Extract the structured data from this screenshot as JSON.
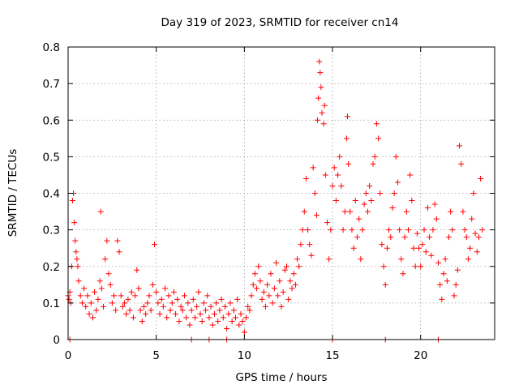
{
  "chart_data": {
    "type": "scatter",
    "title": "Day 319 of 2023, SRMTID for receiver cn14",
    "xlabel": "GPS time / hours",
    "ylabel": "SRMTID / TECUs",
    "xlim": [
      0,
      24.2
    ],
    "ylim": [
      0,
      0.8
    ],
    "xticks": [
      0,
      5,
      10,
      15,
      20
    ],
    "xtick_labels": [
      "0",
      "5",
      "10",
      "15",
      "20"
    ],
    "yticks": [
      0,
      0.1,
      0.2,
      0.3,
      0.4,
      0.5,
      0.6,
      0.7,
      0.8
    ],
    "ytick_labels": [
      "0",
      "0.1",
      "0.2",
      "0.3",
      "0.4",
      "0.5",
      "0.6",
      "0.7",
      "0.8"
    ],
    "grid": true,
    "marker": "+",
    "series": [
      {
        "name": "SRMTID",
        "color": "#ff0000",
        "points": [
          [
            0.0,
            0.12
          ],
          [
            0.05,
            0.11
          ],
          [
            0.1,
            0.13
          ],
          [
            0.15,
            0.1
          ],
          [
            0.2,
            0.2
          ],
          [
            0.25,
            0.38
          ],
          [
            0.3,
            0.4
          ],
          [
            0.35,
            0.32
          ],
          [
            0.4,
            0.27
          ],
          [
            0.45,
            0.24
          ],
          [
            0.5,
            0.22
          ],
          [
            0.55,
            0.2
          ],
          [
            0.6,
            0.16
          ],
          [
            0.7,
            0.12
          ],
          [
            0.8,
            0.1
          ],
          [
            0.9,
            0.14
          ],
          [
            1.0,
            0.09
          ],
          [
            1.1,
            0.12
          ],
          [
            1.2,
            0.07
          ],
          [
            1.3,
            0.1
          ],
          [
            1.4,
            0.06
          ],
          [
            1.5,
            0.13
          ],
          [
            1.6,
            0.08
          ],
          [
            1.7,
            0.11
          ],
          [
            1.8,
            0.16
          ],
          [
            1.85,
            0.35
          ],
          [
            1.9,
            0.14
          ],
          [
            2.0,
            0.09
          ],
          [
            2.1,
            0.22
          ],
          [
            2.2,
            0.27
          ],
          [
            2.3,
            0.18
          ],
          [
            2.4,
            0.15
          ],
          [
            2.5,
            0.1
          ],
          [
            2.6,
            0.12
          ],
          [
            2.7,
            0.08
          ],
          [
            2.8,
            0.27
          ],
          [
            2.9,
            0.24
          ],
          [
            3.0,
            0.12
          ],
          [
            3.1,
            0.09
          ],
          [
            3.2,
            0.1
          ],
          [
            3.3,
            0.07
          ],
          [
            3.4,
            0.11
          ],
          [
            3.5,
            0.08
          ],
          [
            3.6,
            0.13
          ],
          [
            3.7,
            0.06
          ],
          [
            3.8,
            0.12
          ],
          [
            3.9,
            0.19
          ],
          [
            4.0,
            0.14
          ],
          [
            4.1,
            0.08
          ],
          [
            4.2,
            0.05
          ],
          [
            4.3,
            0.09
          ],
          [
            4.4,
            0.07
          ],
          [
            4.5,
            0.1
          ],
          [
            4.6,
            0.12
          ],
          [
            4.7,
            0.08
          ],
          [
            4.8,
            0.15
          ],
          [
            4.9,
            0.26
          ],
          [
            5.0,
            0.13
          ],
          [
            5.1,
            0.1
          ],
          [
            5.2,
            0.07
          ],
          [
            5.3,
            0.11
          ],
          [
            5.4,
            0.09
          ],
          [
            5.5,
            0.14
          ],
          [
            5.6,
            0.06
          ],
          [
            5.7,
            0.12
          ],
          [
            5.8,
            0.08
          ],
          [
            5.9,
            0.1
          ],
          [
            6.0,
            0.13
          ],
          [
            6.1,
            0.07
          ],
          [
            6.2,
            0.11
          ],
          [
            6.3,
            0.05
          ],
          [
            6.4,
            0.09
          ],
          [
            6.5,
            0.08
          ],
          [
            6.6,
            0.12
          ],
          [
            6.7,
            0.06
          ],
          [
            6.8,
            0.1
          ],
          [
            6.9,
            0.04
          ],
          [
            7.0,
            0.08
          ],
          [
            7.1,
            0.11
          ],
          [
            7.2,
            0.06
          ],
          [
            7.3,
            0.09
          ],
          [
            7.4,
            0.13
          ],
          [
            7.5,
            0.07
          ],
          [
            7.6,
            0.05
          ],
          [
            7.7,
            0.1
          ],
          [
            7.8,
            0.08
          ],
          [
            7.9,
            0.12
          ],
          [
            8.0,
            0.06
          ],
          [
            8.1,
            0.09
          ],
          [
            8.2,
            0.04
          ],
          [
            8.3,
            0.07
          ],
          [
            8.4,
            0.1
          ],
          [
            8.5,
            0.05
          ],
          [
            8.6,
            0.08
          ],
          [
            8.7,
            0.11
          ],
          [
            8.8,
            0.06
          ],
          [
            8.9,
            0.09
          ],
          [
            9.0,
            0.03
          ],
          [
            9.1,
            0.07
          ],
          [
            9.2,
            0.1
          ],
          [
            9.3,
            0.05
          ],
          [
            9.4,
            0.08
          ],
          [
            9.5,
            0.06
          ],
          [
            9.6,
            0.11
          ],
          [
            9.7,
            0.04
          ],
          [
            9.8,
            0.07
          ],
          [
            9.9,
            0.05
          ],
          [
            10.0,
            0.02
          ],
          [
            10.1,
            0.06
          ],
          [
            10.2,
            0.09
          ],
          [
            10.3,
            0.08
          ],
          [
            10.4,
            0.12
          ],
          [
            10.5,
            0.15
          ],
          [
            10.6,
            0.18
          ],
          [
            10.7,
            0.14
          ],
          [
            10.8,
            0.2
          ],
          [
            10.9,
            0.16
          ],
          [
            11.0,
            0.11
          ],
          [
            11.1,
            0.13
          ],
          [
            11.2,
            0.09
          ],
          [
            11.3,
            0.15
          ],
          [
            11.4,
            0.12
          ],
          [
            11.5,
            0.18
          ],
          [
            11.6,
            0.1
          ],
          [
            11.7,
            0.14
          ],
          [
            11.8,
            0.21
          ],
          [
            11.9,
            0.12
          ],
          [
            12.0,
            0.16
          ],
          [
            12.1,
            0.09
          ],
          [
            12.2,
            0.13
          ],
          [
            12.3,
            0.19
          ],
          [
            12.4,
            0.2
          ],
          [
            12.5,
            0.11
          ],
          [
            12.6,
            0.16
          ],
          [
            12.7,
            0.14
          ],
          [
            12.8,
            0.18
          ],
          [
            12.9,
            0.15
          ],
          [
            13.0,
            0.22
          ],
          [
            13.1,
            0.2
          ],
          [
            13.2,
            0.26
          ],
          [
            13.3,
            0.3
          ],
          [
            13.4,
            0.35
          ],
          [
            13.5,
            0.44
          ],
          [
            13.6,
            0.3
          ],
          [
            13.7,
            0.26
          ],
          [
            13.8,
            0.23
          ],
          [
            13.9,
            0.47
          ],
          [
            14.0,
            0.4
          ],
          [
            14.1,
            0.34
          ],
          [
            14.15,
            0.6
          ],
          [
            14.2,
            0.66
          ],
          [
            14.25,
            0.76
          ],
          [
            14.3,
            0.73
          ],
          [
            14.35,
            0.69
          ],
          [
            14.4,
            0.62
          ],
          [
            14.5,
            0.59
          ],
          [
            14.55,
            0.64
          ],
          [
            14.6,
            0.45
          ],
          [
            14.7,
            0.32
          ],
          [
            14.8,
            0.22
          ],
          [
            14.9,
            0.3
          ],
          [
            15.0,
            0.42
          ],
          [
            15.1,
            0.47
          ],
          [
            15.2,
            0.38
          ],
          [
            15.3,
            0.45
          ],
          [
            15.4,
            0.5
          ],
          [
            15.5,
            0.42
          ],
          [
            15.6,
            0.3
          ],
          [
            15.7,
            0.35
          ],
          [
            15.8,
            0.55
          ],
          [
            15.85,
            0.61
          ],
          [
            15.9,
            0.48
          ],
          [
            16.0,
            0.35
          ],
          [
            16.1,
            0.3
          ],
          [
            16.2,
            0.25
          ],
          [
            16.3,
            0.38
          ],
          [
            16.4,
            0.28
          ],
          [
            16.5,
            0.33
          ],
          [
            16.6,
            0.22
          ],
          [
            16.7,
            0.3
          ],
          [
            16.8,
            0.37
          ],
          [
            16.9,
            0.4
          ],
          [
            17.0,
            0.35
          ],
          [
            17.1,
            0.42
          ],
          [
            17.2,
            0.38
          ],
          [
            17.3,
            0.48
          ],
          [
            17.4,
            0.5
          ],
          [
            17.5,
            0.59
          ],
          [
            17.6,
            0.55
          ],
          [
            17.7,
            0.4
          ],
          [
            17.8,
            0.26
          ],
          [
            17.9,
            0.2
          ],
          [
            18.0,
            0.15
          ],
          [
            18.1,
            0.25
          ],
          [
            18.2,
            0.3
          ],
          [
            18.3,
            0.28
          ],
          [
            18.4,
            0.36
          ],
          [
            18.5,
            0.4
          ],
          [
            18.6,
            0.5
          ],
          [
            18.7,
            0.43
          ],
          [
            18.8,
            0.3
          ],
          [
            18.9,
            0.22
          ],
          [
            19.0,
            0.18
          ],
          [
            19.1,
            0.28
          ],
          [
            19.2,
            0.35
          ],
          [
            19.3,
            0.3
          ],
          [
            19.4,
            0.45
          ],
          [
            19.5,
            0.38
          ],
          [
            19.6,
            0.25
          ],
          [
            19.7,
            0.2
          ],
          [
            19.8,
            0.29
          ],
          [
            19.9,
            0.25
          ],
          [
            20.0,
            0.2
          ],
          [
            20.1,
            0.26
          ],
          [
            20.2,
            0.3
          ],
          [
            20.3,
            0.24
          ],
          [
            20.4,
            0.36
          ],
          [
            20.5,
            0.28
          ],
          [
            20.6,
            0.23
          ],
          [
            20.7,
            0.3
          ],
          [
            20.8,
            0.37
          ],
          [
            20.9,
            0.33
          ],
          [
            21.0,
            0.21
          ],
          [
            21.1,
            0.15
          ],
          [
            21.2,
            0.11
          ],
          [
            21.3,
            0.18
          ],
          [
            21.4,
            0.22
          ],
          [
            21.5,
            0.16
          ],
          [
            21.6,
            0.28
          ],
          [
            21.7,
            0.35
          ],
          [
            21.8,
            0.3
          ],
          [
            21.9,
            0.12
          ],
          [
            22.0,
            0.15
          ],
          [
            22.1,
            0.19
          ],
          [
            22.2,
            0.53
          ],
          [
            22.3,
            0.48
          ],
          [
            22.4,
            0.35
          ],
          [
            22.5,
            0.3
          ],
          [
            22.6,
            0.28
          ],
          [
            22.7,
            0.22
          ],
          [
            22.8,
            0.25
          ],
          [
            22.9,
            0.33
          ],
          [
            23.0,
            0.4
          ],
          [
            23.1,
            0.29
          ],
          [
            23.2,
            0.24
          ],
          [
            23.3,
            0.28
          ],
          [
            23.4,
            0.44
          ],
          [
            23.5,
            0.3
          ],
          [
            0.1,
            0.0
          ],
          [
            7.0,
            0.0
          ],
          [
            8.0,
            0.0
          ],
          [
            9.0,
            0.0
          ],
          [
            15.0,
            0.0
          ],
          [
            18.0,
            0.0
          ],
          [
            21.0,
            0.0
          ]
        ]
      }
    ]
  }
}
